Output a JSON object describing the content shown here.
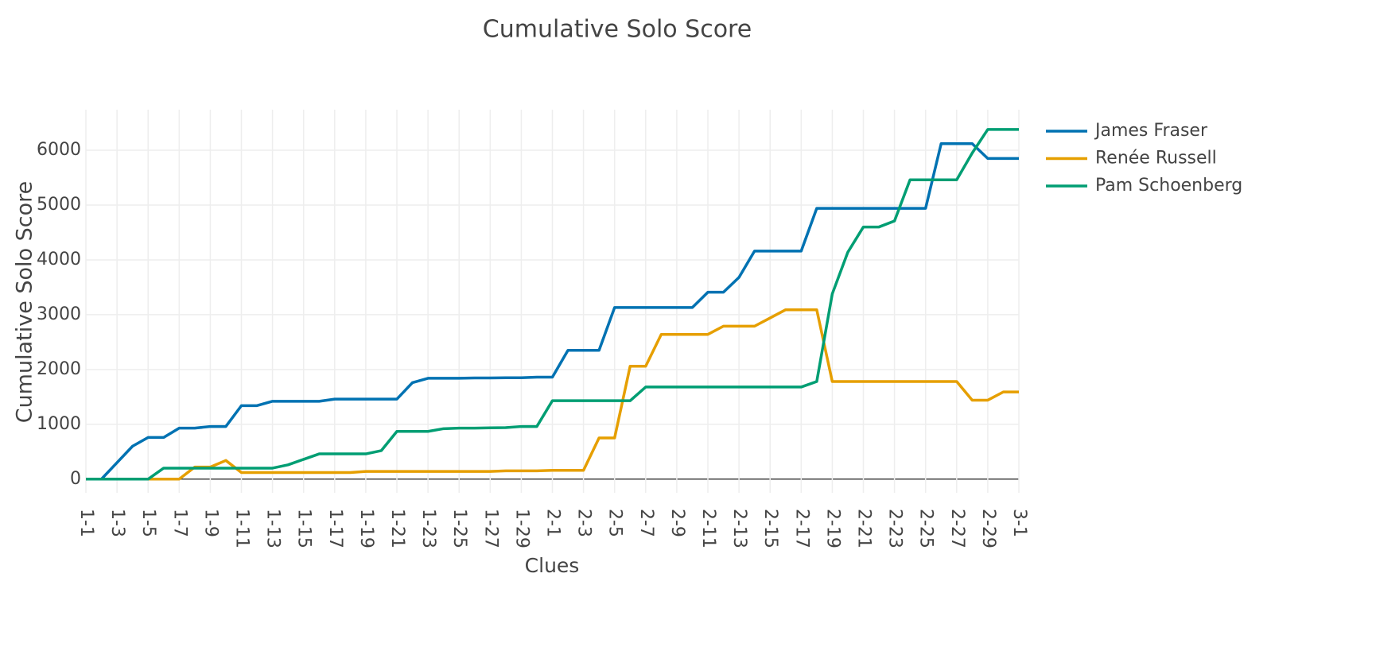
{
  "chart_data": {
    "type": "line",
    "title": "Cumulative Solo Score",
    "x_label": "Clues",
    "y_label": "Cumulative Solo Score",
    "categories": [
      "1-1",
      null,
      "1-3",
      null,
      "1-5",
      null,
      "1-7",
      null,
      "1-9",
      null,
      "1-11",
      null,
      "1-13",
      null,
      "1-15",
      null,
      "1-17",
      null,
      "1-19",
      null,
      "1-21",
      null,
      "1-23",
      null,
      "1-25",
      null,
      "1-27",
      null,
      "1-29",
      null,
      "2-1",
      null,
      "2-3",
      null,
      "2-5",
      null,
      "2-7",
      null,
      "2-9",
      null,
      "2-11",
      null,
      "2-13",
      null,
      "2-15",
      null,
      "2-17",
      null,
      "2-19",
      null,
      "2-21",
      null,
      "2-23",
      null,
      "2-25",
      null,
      "2-27",
      null,
      "2-29",
      null,
      "3-1"
    ],
    "series": [
      {
        "name": "James Fraser",
        "color": "#0072b2",
        "values": [
          0,
          0,
          300,
          600,
          760,
          760,
          930,
          930,
          960,
          960,
          1340,
          1340,
          1420,
          1420,
          1420,
          1420,
          1460,
          1460,
          1460,
          1460,
          1460,
          1760,
          1840,
          1840,
          1840,
          1845,
          1845,
          1850,
          1850,
          1860,
          1860,
          2350,
          2350,
          2350,
          3130,
          3130,
          3130,
          3130,
          3130,
          3130,
          3410,
          3410,
          3680,
          4160,
          4160,
          4160,
          4160,
          4940,
          4940,
          4940,
          4940,
          4940,
          4940,
          4940,
          4940,
          6120,
          6120,
          6120,
          5850,
          5850,
          5850
        ]
      },
      {
        "name": "Renée Russell",
        "color": "#e69f00",
        "values": [
          0,
          0,
          0,
          0,
          0,
          0,
          0,
          220,
          220,
          340,
          120,
          120,
          120,
          120,
          120,
          120,
          120,
          120,
          140,
          140,
          140,
          140,
          140,
          140,
          140,
          140,
          140,
          150,
          150,
          150,
          160,
          160,
          160,
          750,
          750,
          2060,
          2060,
          2640,
          2640,
          2640,
          2640,
          2790,
          2790,
          2790,
          2940,
          3090,
          3090,
          3090,
          1780,
          1780,
          1780,
          1780,
          1780,
          1780,
          1780,
          1780,
          1780,
          1440,
          1440,
          1590,
          1590
        ]
      },
      {
        "name": "Pam Schoenberg",
        "color": "#009e73",
        "values": [
          0,
          0,
          0,
          0,
          0,
          200,
          200,
          200,
          200,
          200,
          200,
          200,
          200,
          260,
          360,
          460,
          460,
          460,
          460,
          520,
          870,
          870,
          870,
          920,
          930,
          930,
          935,
          940,
          960,
          960,
          1430,
          1430,
          1430,
          1430,
          1430,
          1430,
          1680,
          1680,
          1680,
          1680,
          1680,
          1680,
          1680,
          1680,
          1680,
          1680,
          1680,
          1780,
          3380,
          4140,
          4600,
          4600,
          4710,
          5460,
          5460,
          5460,
          5460,
          5950,
          6380,
          6380,
          6380
        ]
      }
    ],
    "ylim": [
      -250,
      6740
    ],
    "yticks": [
      0,
      1000,
      2000,
      3000,
      4000,
      5000,
      6000
    ],
    "grid": true
  }
}
